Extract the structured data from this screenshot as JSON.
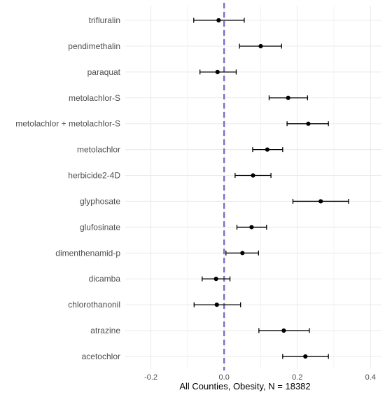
{
  "chart_data": {
    "type": "scatter",
    "subtype": "forest-plot",
    "xlabel": "All Counties, Obesity, N = 18382",
    "ylabel": "",
    "title": "",
    "xlim": [
      -0.27,
      0.43
    ],
    "x_ticks": [
      -0.2,
      0.0,
      0.2,
      0.4
    ],
    "x_tick_labels": [
      "-0.2",
      "0.0",
      "0.2",
      "0.4"
    ],
    "grid": true,
    "reference_line": {
      "x": 0,
      "style": "dashed",
      "color": "#7b6fc4"
    },
    "point_color": "#000000",
    "grid_color": "#ebebeb",
    "categories": [
      "trifluralin",
      "pendimethalin",
      "paraquat",
      "metolachlor-S",
      "metolachlor + metolachlor-S",
      "metolachlor",
      "herbicide2-4D",
      "glyphosate",
      "glufosinate",
      "dimenthenamid-p",
      "dicamba",
      "chlorothanonil",
      "atrazine",
      "acetochlor"
    ],
    "estimates": [
      -0.015,
      0.1,
      -0.018,
      0.175,
      0.23,
      0.118,
      0.079,
      0.264,
      0.075,
      0.05,
      -0.022,
      -0.02,
      0.163,
      0.222
    ],
    "ci_lower": [
      -0.083,
      0.042,
      -0.066,
      0.123,
      0.172,
      0.078,
      0.03,
      0.188,
      0.035,
      0.005,
      -0.06,
      -0.082,
      0.095,
      0.16
    ],
    "ci_upper": [
      0.055,
      0.157,
      0.033,
      0.228,
      0.285,
      0.16,
      0.128,
      0.34,
      0.116,
      0.094,
      0.016,
      0.045,
      0.233,
      0.285
    ]
  }
}
